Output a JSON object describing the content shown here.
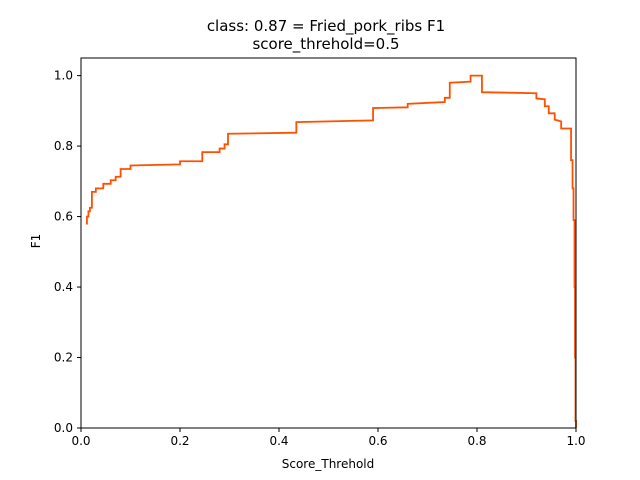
{
  "chart_data": {
    "type": "line",
    "title": "class: 0.87 = Fried_pork_ribs F1",
    "subtitle": "score_threhold=0.5",
    "xlabel": "Score_Threhold",
    "ylabel": "F1",
    "xlim": [
      0.0,
      1.0
    ],
    "ylim": [
      0.0,
      1.05
    ],
    "xticks": [
      0.0,
      0.2,
      0.4,
      0.6,
      0.8,
      1.0
    ],
    "xtick_labels": [
      "0.0",
      "0.2",
      "0.4",
      "0.6",
      "0.8",
      "1.0"
    ],
    "yticks": [
      0.0,
      0.2,
      0.4,
      0.6,
      0.8,
      1.0
    ],
    "ytick_labels": [
      "0.0",
      "0.2",
      "0.4",
      "0.6",
      "0.8",
      "1.0"
    ],
    "grid": false,
    "line_color": "#ff5000",
    "series": [
      {
        "x": [
          0.01,
          0.012,
          0.012,
          0.015,
          0.015,
          0.018,
          0.018,
          0.022,
          0.022,
          0.03,
          0.03,
          0.045,
          0.045,
          0.06,
          0.06,
          0.07,
          0.07,
          0.08,
          0.08,
          0.1,
          0.1,
          0.2,
          0.2,
          0.245,
          0.245,
          0.28,
          0.28,
          0.29,
          0.29,
          0.297,
          0.297,
          0.435,
          0.435,
          0.59,
          0.59,
          0.66,
          0.66,
          0.735,
          0.735,
          0.745,
          0.745,
          0.787,
          0.787,
          0.81,
          0.81,
          0.92,
          0.92,
          0.937,
          0.937,
          0.945,
          0.945,
          0.957,
          0.957,
          0.97,
          0.97,
          0.99,
          0.99,
          0.993,
          0.993,
          0.995,
          0.995,
          0.997,
          0.997,
          0.998,
          0.998,
          0.999,
          0.999,
          1.0,
          1.0
        ],
        "y": [
          0.58,
          0.58,
          0.6,
          0.6,
          0.615,
          0.615,
          0.625,
          0.625,
          0.67,
          0.67,
          0.68,
          0.68,
          0.693,
          0.693,
          0.703,
          0.703,
          0.713,
          0.713,
          0.735,
          0.735,
          0.745,
          0.748,
          0.757,
          0.757,
          0.783,
          0.783,
          0.793,
          0.793,
          0.805,
          0.805,
          0.835,
          0.838,
          0.868,
          0.873,
          0.908,
          0.91,
          0.92,
          0.925,
          0.937,
          0.937,
          0.98,
          0.983,
          1.0,
          1.0,
          0.953,
          0.95,
          0.935,
          0.933,
          0.913,
          0.913,
          0.893,
          0.893,
          0.875,
          0.87,
          0.85,
          0.85,
          0.76,
          0.76,
          0.68,
          0.68,
          0.59,
          0.59,
          0.4,
          0.4,
          0.2,
          0.2,
          0.02,
          0.02,
          0.0
        ]
      }
    ]
  }
}
